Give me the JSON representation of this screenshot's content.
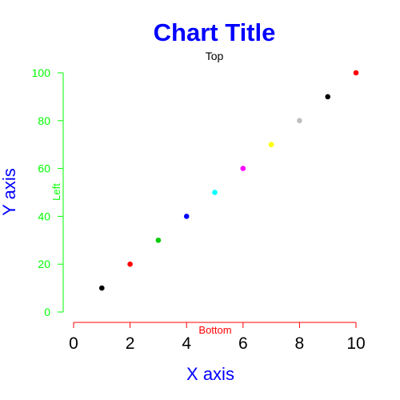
{
  "chart_data": {
    "type": "scatter",
    "title": "Chart Title",
    "subtitle": "Top",
    "xlabel": "X axis",
    "ylabel": "Y axis",
    "left_axis_label": "Left",
    "bottom_axis_label": "Bottom",
    "xlim": [
      0,
      10
    ],
    "ylim": [
      0,
      100
    ],
    "x_ticks": [
      "0",
      "2",
      "4",
      "6",
      "8",
      "10"
    ],
    "y_ticks": [
      "0",
      "20",
      "40",
      "60",
      "80",
      "100"
    ],
    "grid": false,
    "series": [
      {
        "x": [
          1,
          2,
          3,
          4,
          5,
          6,
          7,
          8,
          9,
          10
        ],
        "y": [
          10,
          20,
          30,
          40,
          50,
          60,
          70,
          80,
          90,
          100
        ],
        "colors": [
          "#000000",
          "#ff0000",
          "#00cd00",
          "#0000ff",
          "#00ffff",
          "#ff00ff",
          "#ffff00",
          "#bebebe",
          "#000000",
          "#ff0000"
        ]
      }
    ],
    "colors": {
      "title": "#0000ff",
      "axis_titles": "#0000ff",
      "left_axis": "#00ff00",
      "bottom_axis": "#ff0000",
      "x_tick_labels": "#000000",
      "subtitle": "#000000"
    }
  }
}
